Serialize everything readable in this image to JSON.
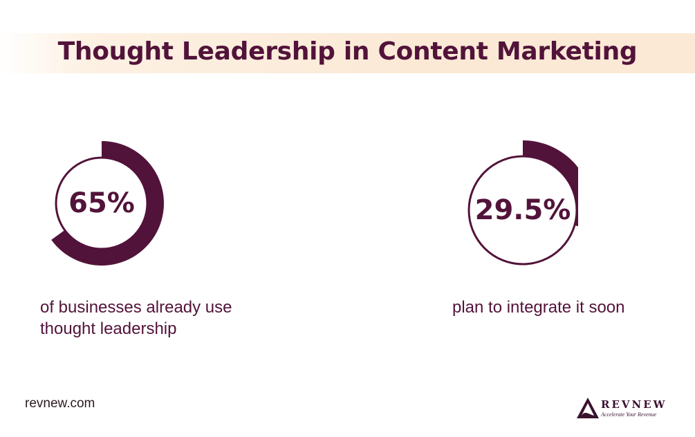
{
  "title": "Thought Leadership in Content Marketing",
  "stats": [
    {
      "value_label": "65%",
      "fraction": 0.65,
      "text": [
        "of businesses already use",
        "thought leadership"
      ]
    },
    {
      "value_label": "29.5%",
      "fraction": 0.295,
      "text": [
        "plan to integrate it soon"
      ]
    }
  ],
  "footer": {
    "site": "revnew.com",
    "logo_name": "REVNEW",
    "logo_tagline": "Accelerate Your Revenue"
  },
  "colors": {
    "accent": "#52133a",
    "band": "#fbe9d6"
  },
  "icons": [
    "revnew-logo-icon"
  ]
}
